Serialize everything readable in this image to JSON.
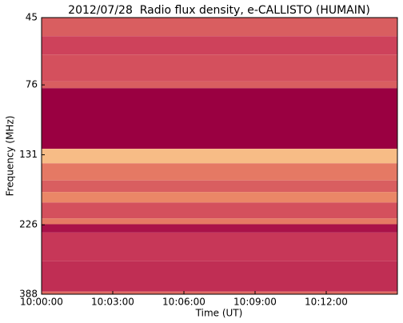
{
  "chart_data": {
    "type": "heatmap",
    "title": "2012/07/28  Radio flux density, e-CALLISTO (HUMAIN)",
    "xlabel": "Time (UT)",
    "ylabel": "Frequency (MHz)",
    "xlim": [
      36000,
      36900
    ],
    "xticks": [
      {
        "value": 36000,
        "label": "10:00:00"
      },
      {
        "value": 36180,
        "label": "10:03:00"
      },
      {
        "value": 36360,
        "label": "10:06:00"
      },
      {
        "value": 36540,
        "label": "10:09:00"
      },
      {
        "value": 36720,
        "label": "10:12:00"
      }
    ],
    "ylim": [
      45,
      388
    ],
    "yticks": [
      45,
      76,
      131,
      226,
      388
    ],
    "ylog": true,
    "yinverted": true,
    "y_bins": [
      45,
      52,
      60,
      74,
      78,
      125,
      140,
      160,
      175,
      190,
      215,
      225,
      240,
      300,
      380,
      388
    ],
    "values": [
      0.45,
      0.35,
      0.4,
      0.45,
      0.0,
      0.8,
      0.55,
      0.45,
      0.6,
      0.4,
      0.55,
      0.1,
      0.3,
      0.25,
      0.5
    ],
    "vlim": [
      0,
      1
    ],
    "colormap": [
      "#9a0041",
      "#cc3d5a",
      "#f29a6a",
      "#fff0b0"
    ]
  }
}
